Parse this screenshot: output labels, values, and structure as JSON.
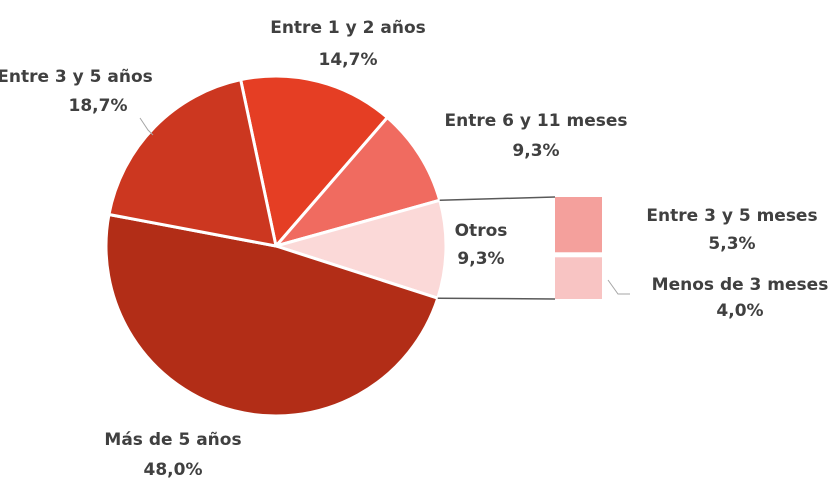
{
  "chart_data": {
    "type": "pie",
    "categories": [
      "Entre 1 y 2 años",
      "Entre 6 y 11 meses",
      "Otros",
      "Más de 5 años",
      "Entre 3 y 5 años"
    ],
    "values": [
      14.7,
      9.3,
      9.3,
      48.0,
      18.7
    ],
    "value_labels": [
      "14,7%",
      "9,3%",
      "9,3%",
      "48,0%",
      "18,7%"
    ],
    "colors": [
      "#e53e24",
      "#f06b60",
      "#fbd9d8",
      "#b22d17",
      "#cc3720"
    ],
    "secondary": {
      "type": "bar",
      "categories": [
        "Entre 3 y 5 meses",
        "Menos de 3 meses"
      ],
      "values": [
        5.3,
        4.0
      ],
      "value_labels": [
        "5,3%",
        "4,0%"
      ],
      "colors": [
        "#f4a09c",
        "#f8c4c3"
      ]
    }
  }
}
